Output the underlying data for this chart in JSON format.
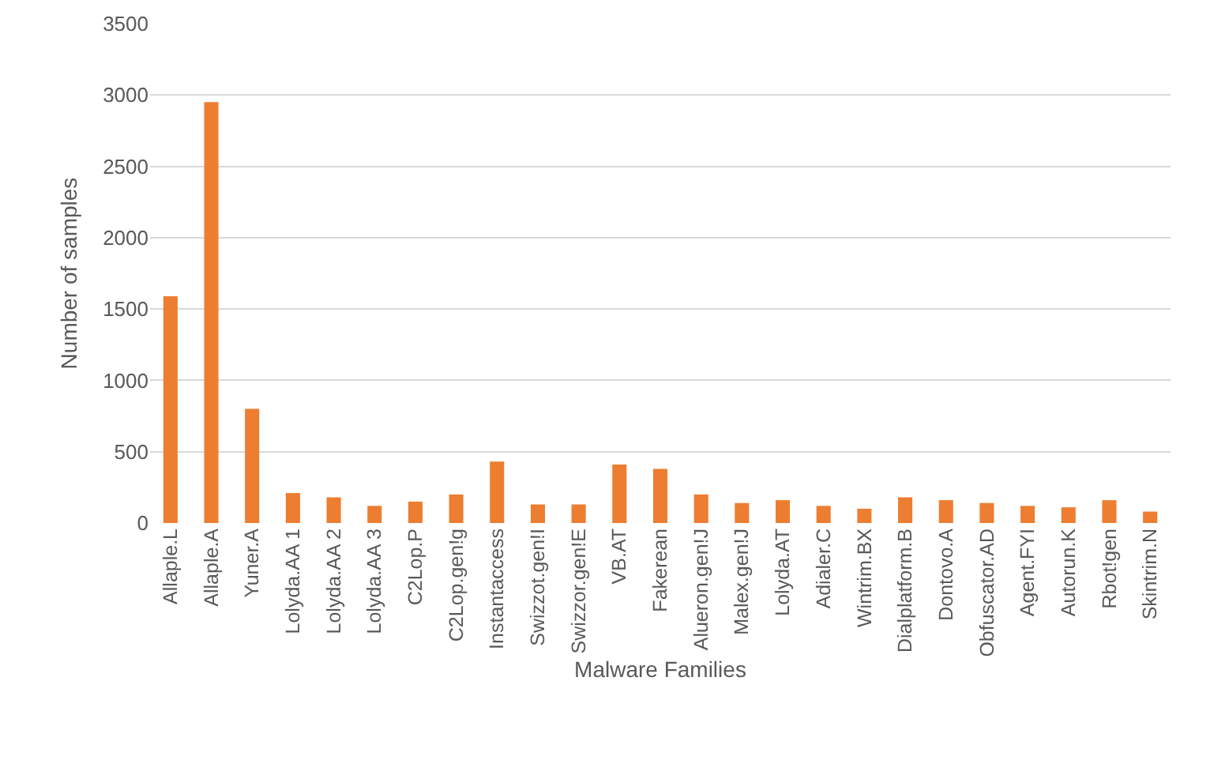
{
  "chart_data": {
    "type": "bar",
    "xlabel": "Malware Families",
    "ylabel": "Number of samples",
    "categories": [
      "Allaple.L",
      "Allaple.A",
      "Yuner.A",
      "Lolyda.AA 1",
      "Lolyda.AA 2",
      "Lolyda.AA 3",
      "C2Lop.P",
      "C2Lop.gen!g",
      "Instantaccess",
      "Swizzot.gen!I",
      "Swizzor.gen!E",
      "VB.AT",
      "Fakerean",
      "Alueron.gen!J",
      "Malex.gen!J",
      "Lolyda.AT",
      "Adialer.C",
      "Wintrim.BX",
      "Dialplatform.B",
      "Dontovo.A",
      "Obfuscator.AD",
      "Agent.FYI",
      "Autorun.K",
      "Rbot!gen",
      "Skintrim.N"
    ],
    "values": [
      1590,
      2950,
      800,
      210,
      180,
      120,
      150,
      200,
      430,
      130,
      130,
      410,
      380,
      200,
      140,
      160,
      120,
      100,
      180,
      160,
      140,
      120,
      110,
      160,
      80
    ],
    "color": "#ed7d31",
    "ylim": [
      0,
      3500
    ],
    "yticks": [
      0,
      500,
      1000,
      1500,
      2000,
      2500,
      3000,
      3500
    ],
    "grid": "y",
    "legend": false
  }
}
